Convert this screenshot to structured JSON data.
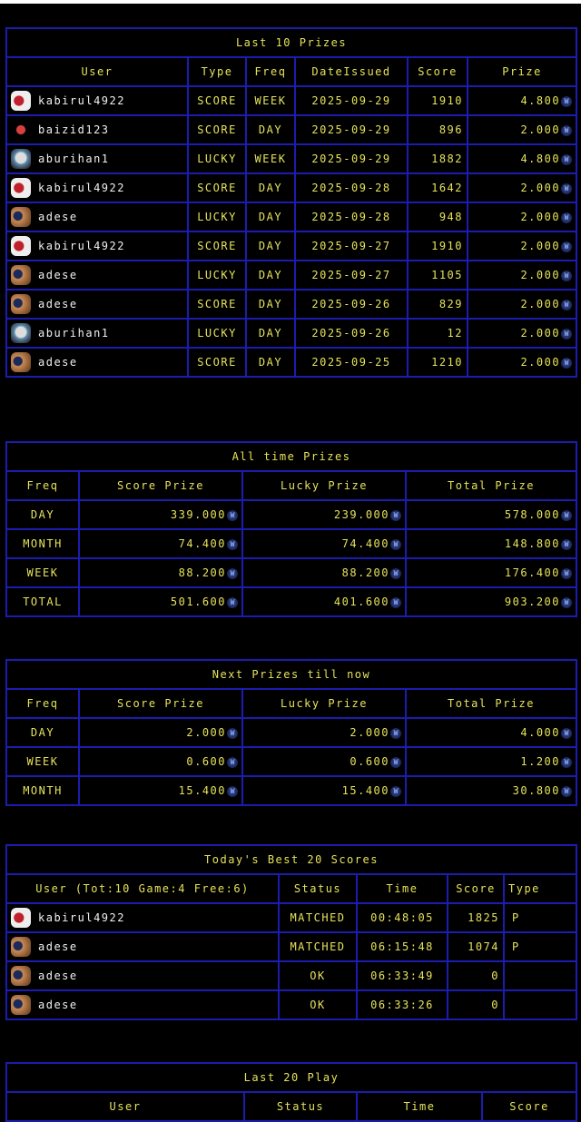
{
  "colors": {
    "text": "#e6e25a",
    "border": "#1c1cb0",
    "username": "#f0f0f0",
    "background": "#000000"
  },
  "currency_icon": "wax-coin-icon",
  "last_prizes": {
    "title": "Last 10 Prizes",
    "headers": [
      "User",
      "Type",
      "Freq",
      "DateIssued",
      "Score",
      "Prize"
    ],
    "rows": [
      {
        "user": "kabirul4922",
        "type": "SCORE",
        "freq": "WEEK",
        "date": "2025-09-29",
        "score": "1910",
        "prize": "4.800"
      },
      {
        "user": "baizid123",
        "type": "SCORE",
        "freq": "DAY",
        "date": "2025-09-29",
        "score": "896",
        "prize": "2.000"
      },
      {
        "user": "aburihan1",
        "type": "LUCKY",
        "freq": "WEEK",
        "date": "2025-09-29",
        "score": "1882",
        "prize": "4.800"
      },
      {
        "user": "kabirul4922",
        "type": "SCORE",
        "freq": "DAY",
        "date": "2025-09-28",
        "score": "1642",
        "prize": "2.000"
      },
      {
        "user": "adese",
        "type": "LUCKY",
        "freq": "DAY",
        "date": "2025-09-28",
        "score": "948",
        "prize": "2.000"
      },
      {
        "user": "kabirul4922",
        "type": "SCORE",
        "freq": "DAY",
        "date": "2025-09-27",
        "score": "1910",
        "prize": "2.000"
      },
      {
        "user": "adese",
        "type": "LUCKY",
        "freq": "DAY",
        "date": "2025-09-27",
        "score": "1105",
        "prize": "2.000"
      },
      {
        "user": "adese",
        "type": "SCORE",
        "freq": "DAY",
        "date": "2025-09-26",
        "score": "829",
        "prize": "2.000"
      },
      {
        "user": "aburihan1",
        "type": "LUCKY",
        "freq": "DAY",
        "date": "2025-09-26",
        "score": "12",
        "prize": "2.000"
      },
      {
        "user": "adese",
        "type": "SCORE",
        "freq": "DAY",
        "date": "2025-09-25",
        "score": "1210",
        "prize": "2.000"
      }
    ]
  },
  "all_time": {
    "title": "All time Prizes",
    "headers": [
      "Freq",
      "Score Prize",
      "Lucky Prize",
      "Total Prize"
    ],
    "rows": [
      {
        "freq": "DAY",
        "score": "339.000",
        "lucky": "239.000",
        "total": "578.000"
      },
      {
        "freq": "MONTH",
        "score": "74.400",
        "lucky": "74.400",
        "total": "148.800"
      },
      {
        "freq": "WEEK",
        "score": "88.200",
        "lucky": "88.200",
        "total": "176.400"
      },
      {
        "freq": "TOTAL",
        "score": "501.600",
        "lucky": "401.600",
        "total": "903.200"
      }
    ]
  },
  "next_prizes": {
    "title": "Next Prizes till now",
    "headers": [
      "Freq",
      "Score Prize",
      "Lucky Prize",
      "Total Prize"
    ],
    "rows": [
      {
        "freq": "DAY",
        "score": "2.000",
        "lucky": "2.000",
        "total": "4.000"
      },
      {
        "freq": "WEEK",
        "score": "0.600",
        "lucky": "0.600",
        "total": "1.200"
      },
      {
        "freq": "MONTH",
        "score": "15.400",
        "lucky": "15.400",
        "total": "30.800"
      }
    ]
  },
  "best_scores": {
    "title": "Today's Best 20 Scores",
    "headers": [
      "User (Tot:10 Game:4 Free:6)",
      "Status",
      "Time",
      "Score",
      "Type"
    ],
    "rows": [
      {
        "user": "kabirul4922",
        "status": "MATCHED",
        "time": "00:48:05",
        "score": "1825",
        "type": "P"
      },
      {
        "user": "adese",
        "status": "MATCHED",
        "time": "06:15:48",
        "score": "1074",
        "type": "P"
      },
      {
        "user": "adese",
        "status": "OK",
        "time": "06:33:49",
        "score": "0",
        "type": ""
      },
      {
        "user": "adese",
        "status": "OK",
        "time": "06:33:26",
        "score": "0",
        "type": ""
      }
    ]
  },
  "last_play": {
    "title": "Last 20 Play",
    "headers": [
      "User",
      "Status",
      "Time",
      "Score"
    ]
  }
}
